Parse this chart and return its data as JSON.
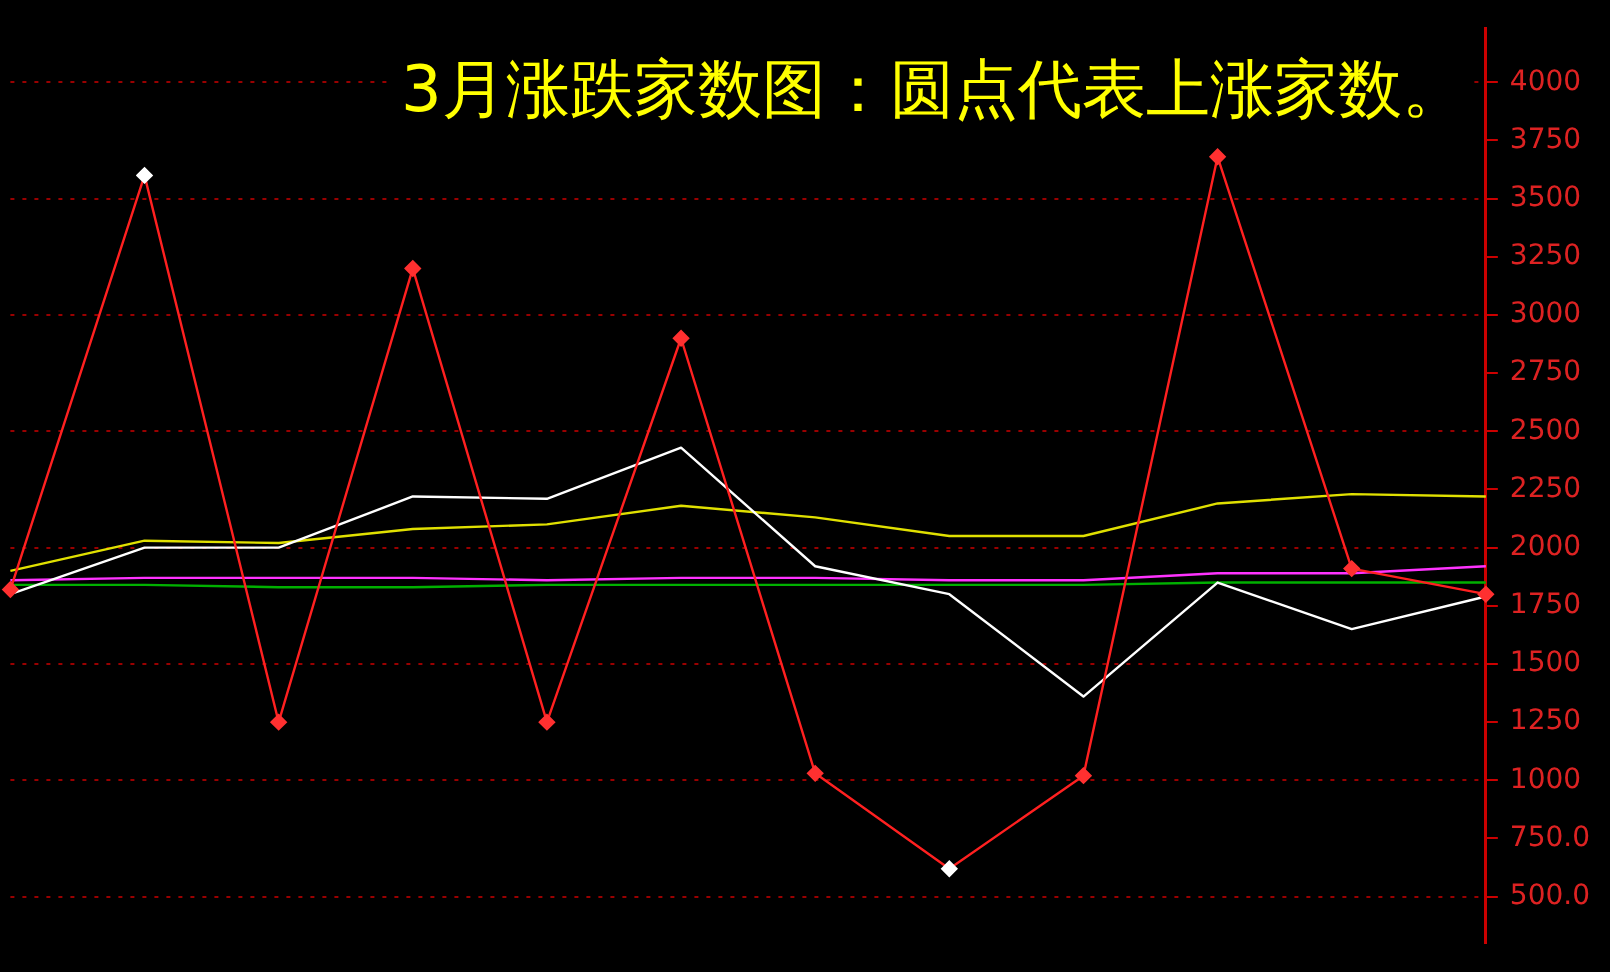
{
  "chart_data": {
    "type": "line",
    "title": "3月涨跌家数图：圆点代表上涨家数。",
    "categories": [
      null,
      null,
      null,
      null,
      null,
      null,
      null,
      null,
      null,
      null,
      null,
      null
    ],
    "series": [
      {
        "color": "#ffffff",
        "marker": "none",
        "values": [
          1800,
          2000,
          2000,
          2220,
          2210,
          2430,
          1920,
          1800,
          1360,
          1850,
          1650,
          1790
        ]
      },
      {
        "color": "#e0e000",
        "marker": "none",
        "values": [
          1900,
          2030,
          2020,
          2080,
          2100,
          2180,
          2130,
          2050,
          2050,
          2190,
          2230,
          2220
        ]
      },
      {
        "color": "#ff33ff",
        "marker": "none",
        "values": [
          1860,
          1870,
          1870,
          1870,
          1860,
          1870,
          1870,
          1860,
          1860,
          1890,
          1890,
          1920
        ]
      },
      {
        "color": "#00b000",
        "marker": "none",
        "values": [
          1840,
          1840,
          1830,
          1830,
          1840,
          1840,
          1840,
          1840,
          1840,
          1850,
          1850,
          1850
        ]
      },
      {
        "color": "#ff2020",
        "marker": "diamond",
        "colors": [
          "#ff3030",
          "#ffffff",
          "#ff3030",
          "#ff3030",
          "#ff3030",
          "#ff3030",
          "#ff3030",
          "#ffffff",
          "#ff3030",
          "#ff3030",
          "#ff3030",
          "#ff3030"
        ],
        "values": [
          1820,
          3600,
          1250,
          3200,
          1250,
          2900,
          1030,
          620,
          1020,
          3680,
          1910,
          1800
        ]
      }
    ],
    "ylim": [
      300,
      4230
    ],
    "yticks": [
      {
        "value": 500,
        "label": "500.0"
      },
      {
        "value": 750,
        "label": "750.0"
      },
      1000,
      1250,
      1500,
      1750,
      2000,
      2250,
      2500,
      2750,
      3000,
      3250,
      3500,
      3750,
      4000
    ],
    "grid": "y",
    "legend": false
  }
}
